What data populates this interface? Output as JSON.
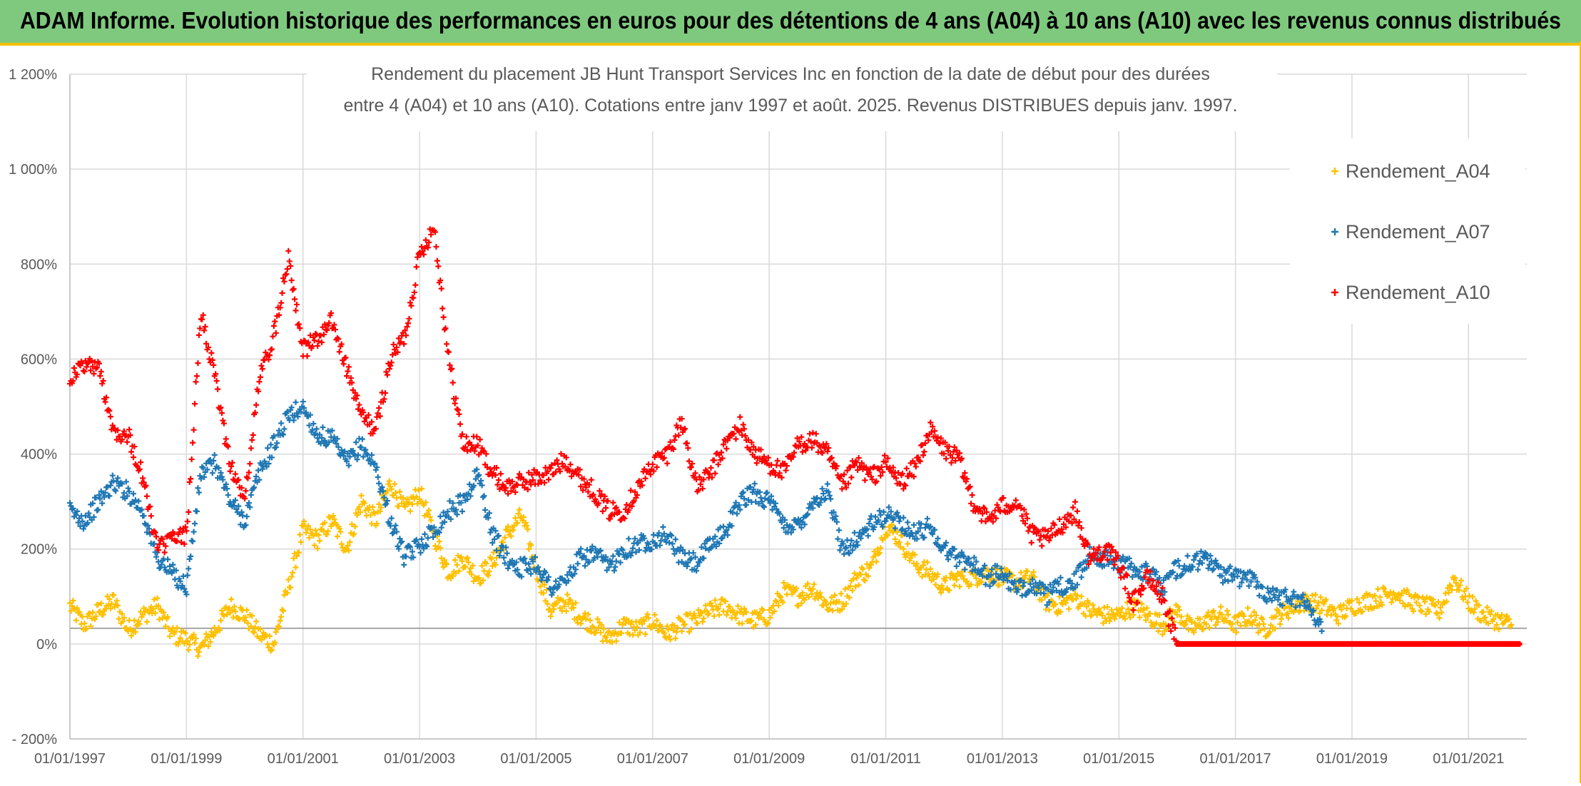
{
  "header": {
    "title": "ADAM Informe. Evolution historique des performances en euros pour des détentions de 4 ans (A04) à 10 ans (A10) avec les revenus connus distribués"
  },
  "chart_data": {
    "type": "scatter",
    "title_line1": "Rendement du placement JB Hunt Transport Services Inc en fonction de la date de début pour des durées",
    "title_line2": "entre 4 (A04) et 10 ans (A10). Cotations entre janv 1997 et août. 2025. Revenus DISTRIBUES depuis janv. 1997.",
    "ylim": [
      -200,
      1200
    ],
    "y_ticks": [
      -200,
      0,
      200,
      400,
      600,
      800,
      1000,
      1200
    ],
    "y_tick_labels": [
      "- 200%",
      "0%",
      "200%",
      "400%",
      "600%",
      "800%",
      "1 000%",
      "1 200%"
    ],
    "xlim": [
      1997.0,
      2022.0
    ],
    "x_ticks": [
      1997,
      1999,
      2001,
      2003,
      2005,
      2007,
      2009,
      2011,
      2013,
      2015,
      2017,
      2019,
      2021
    ],
    "x_tick_labels": [
      "01/01/1997",
      "01/01/1999",
      "01/01/2001",
      "01/01/2003",
      "01/01/2005",
      "01/01/2007",
      "01/01/2009",
      "01/01/2011",
      "01/01/2013",
      "01/01/2015",
      "01/01/2017",
      "01/01/2019",
      "01/01/2021"
    ],
    "grid": true,
    "legend_position": "right",
    "series": [
      {
        "name": "Rendement_A04",
        "color": "#ffc000",
        "x": [
          1997.0,
          1997.25,
          1997.5,
          1997.75,
          1998.0,
          1998.25,
          1998.5,
          1998.75,
          1999.0,
          1999.25,
          1999.5,
          1999.75,
          2000.0,
          2000.25,
          2000.5,
          2000.75,
          2001.0,
          2001.25,
          2001.5,
          2001.75,
          2002.0,
          2002.25,
          2002.5,
          2002.75,
          2003.0,
          2003.25,
          2003.5,
          2003.75,
          2004.0,
          2004.25,
          2004.5,
          2004.75,
          2005.0,
          2005.25,
          2005.5,
          2005.75,
          2006.0,
          2006.25,
          2006.5,
          2006.75,
          2007.0,
          2007.25,
          2007.5,
          2007.75,
          2008.0,
          2008.25,
          2008.5,
          2008.75,
          2009.0,
          2009.25,
          2009.5,
          2009.75,
          2010.0,
          2010.25,
          2010.5,
          2010.75,
          2011.0,
          2011.25,
          2011.5,
          2011.75,
          2012.0,
          2012.25,
          2012.5,
          2012.75,
          2013.0,
          2013.25,
          2013.5,
          2013.75,
          2014.0,
          2014.25,
          2014.5,
          2014.75,
          2015.0,
          2015.25,
          2015.5,
          2015.75,
          2016.0,
          2016.25,
          2016.5,
          2016.75,
          2017.0,
          2017.25,
          2017.5,
          2017.75,
          2018.0,
          2018.25,
          2018.5,
          2018.75,
          2019.0,
          2019.25,
          2019.5,
          2019.75,
          2020.0,
          2020.25,
          2020.5,
          2020.75,
          2021.0,
          2021.25,
          2021.5,
          2021.75
        ],
        "y": [
          80,
          40,
          70,
          90,
          30,
          60,
          80,
          20,
          10,
          -10,
          30,
          80,
          60,
          20,
          0,
          120,
          240,
          220,
          260,
          200,
          300,
          260,
          340,
          280,
          320,
          230,
          150,
          180,
          140,
          170,
          230,
          270,
          160,
          70,
          90,
          60,
          40,
          10,
          40,
          30,
          50,
          20,
          40,
          50,
          70,
          80,
          60,
          50,
          60,
          110,
          100,
          120,
          80,
          90,
          140,
          160,
          250,
          220,
          170,
          150,
          120,
          140,
          140,
          150,
          140,
          130,
          140,
          90,
          80,
          100,
          70,
          60,
          60,
          80,
          60,
          40,
          70,
          30,
          50,
          60,
          40,
          60,
          30,
          60,
          80,
          90,
          80,
          60,
          80,
          90,
          100,
          110,
          90,
          80,
          70,
          140,
          90,
          60,
          50,
          40
        ]
      },
      {
        "name": "Rendement_A07",
        "color": "#1f77b4",
        "x": [
          1997.0,
          1997.25,
          1997.5,
          1997.75,
          1998.0,
          1998.25,
          1998.5,
          1998.75,
          1999.0,
          1999.25,
          1999.5,
          1999.75,
          2000.0,
          2000.25,
          2000.5,
          2000.75,
          2001.0,
          2001.25,
          2001.5,
          2001.75,
          2002.0,
          2002.25,
          2002.5,
          2002.75,
          2003.0,
          2003.25,
          2003.5,
          2003.75,
          2004.0,
          2004.25,
          2004.5,
          2004.75,
          2005.0,
          2005.25,
          2005.5,
          2005.75,
          2006.0,
          2006.25,
          2006.5,
          2006.75,
          2007.0,
          2007.25,
          2007.5,
          2007.75,
          2008.0,
          2008.25,
          2008.5,
          2008.75,
          2009.0,
          2009.25,
          2009.5,
          2009.75,
          2010.0,
          2010.25,
          2010.5,
          2010.75,
          2011.0,
          2011.25,
          2011.5,
          2011.75,
          2012.0,
          2012.25,
          2012.5,
          2012.75,
          2013.0,
          2013.25,
          2013.5,
          2013.75,
          2014.0,
          2014.25,
          2014.5,
          2014.75,
          2015.0,
          2015.25,
          2015.5,
          2015.75,
          2016.0,
          2016.25,
          2016.5,
          2016.75,
          2017.0,
          2017.25,
          2017.5,
          2017.75,
          2018.0,
          2018.25,
          2018.5
        ],
        "y": [
          280,
          260,
          300,
          340,
          320,
          280,
          180,
          150,
          120,
          360,
          380,
          300,
          260,
          360,
          420,
          480,
          500,
          440,
          430,
          380,
          420,
          370,
          260,
          180,
          210,
          240,
          280,
          300,
          360,
          230,
          180,
          160,
          170,
          120,
          130,
          180,
          190,
          160,
          200,
          210,
          220,
          230,
          180,
          170,
          210,
          240,
          300,
          320,
          300,
          250,
          250,
          300,
          320,
          200,
          220,
          250,
          270,
          260,
          230,
          250,
          200,
          180,
          170,
          140,
          150,
          110,
          130,
          100,
          120,
          130,
          190,
          180,
          170,
          160,
          150,
          120,
          160,
          170,
          180,
          150,
          140,
          140,
          110,
          100,
          100,
          80,
          40
        ]
      },
      {
        "name": "Rendement_A10",
        "color": "#ff0000",
        "x": [
          1997.0,
          1997.25,
          1997.5,
          1997.75,
          1998.0,
          1998.25,
          1998.5,
          1998.75,
          1999.0,
          1999.25,
          1999.5,
          1999.75,
          2000.0,
          2000.25,
          2000.5,
          2000.75,
          2001.0,
          2001.25,
          2001.5,
          2001.75,
          2002.0,
          2002.25,
          2002.5,
          2002.75,
          2003.0,
          2003.25,
          2003.5,
          2003.75,
          2004.0,
          2004.25,
          2004.5,
          2004.75,
          2005.0,
          2005.25,
          2005.5,
          2005.75,
          2006.0,
          2006.25,
          2006.5,
          2006.75,
          2007.0,
          2007.25,
          2007.5,
          2007.75,
          2008.0,
          2008.25,
          2008.5,
          2008.75,
          2009.0,
          2009.25,
          2009.5,
          2009.75,
          2010.0,
          2010.25,
          2010.5,
          2010.75,
          2011.0,
          2011.25,
          2011.5,
          2011.75,
          2012.0,
          2012.25,
          2012.5,
          2012.75,
          2013.0,
          2013.25,
          2013.5,
          2013.75,
          2014.0,
          2014.25,
          2014.5,
          2014.75,
          2015.0,
          2015.25,
          2015.5,
          2015.75,
          2016.0,
          2016.5,
          2017.0,
          2017.5,
          2018.0,
          2018.5,
          2019.0,
          2019.5,
          2020.0,
          2020.5,
          2021.0,
          2021.5,
          2021.9
        ],
        "y": [
          560,
          590,
          580,
          450,
          440,
          350,
          200,
          220,
          230,
          700,
          550,
          380,
          300,
          560,
          650,
          820,
          620,
          640,
          680,
          580,
          480,
          450,
          600,
          650,
          820,
          880,
          600,
          420,
          420,
          360,
          330,
          340,
          350,
          360,
          390,
          350,
          320,
          280,
          280,
          330,
          380,
          400,
          470,
          330,
          360,
          420,
          460,
          400,
          380,
          360,
          420,
          430,
          400,
          330,
          380,
          350,
          380,
          340,
          370,
          450,
          410,
          390,
          300,
          260,
          290,
          300,
          230,
          220,
          250,
          280,
          180,
          200,
          170,
          90,
          140,
          100,
          0,
          0,
          0,
          0,
          0,
          0,
          0,
          0,
          0,
          0,
          0,
          0,
          0
        ]
      }
    ]
  }
}
